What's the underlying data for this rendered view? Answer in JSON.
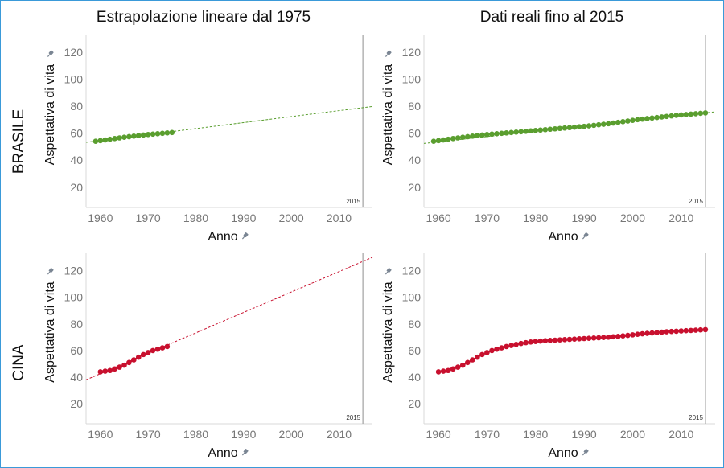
{
  "column_titles": [
    "Estrapolazione lineare dal 1975",
    "Dati reali fino al 2015"
  ],
  "row_labels": [
    "BRASILE",
    "CINA"
  ],
  "xlabel": "Anno",
  "ylabel": "Aspettativa di vita",
  "xticks": [
    1960,
    1970,
    1980,
    1990,
    2000,
    2010
  ],
  "yticks": [
    20,
    40,
    60,
    80,
    100,
    120
  ],
  "reference_label": "2015",
  "colors": {
    "brasile": "#5a9e2f",
    "cina": "#c8102e",
    "axis": "#d8d8d8",
    "refline": "#a8a8a8",
    "tick": "#777777",
    "pin": "#7a8593"
  },
  "chart_data": [
    {
      "type": "line",
      "title": "Estrapolazione lineare dal 1975",
      "row": "BRASILE",
      "xlabel": "Anno",
      "ylabel": "Aspettativa di vita",
      "xlim": [
        1957,
        2017
      ],
      "ylim": [
        5,
        133
      ],
      "reference_line": 2015,
      "series": [
        {
          "x": [
            1959,
            1960,
            1961,
            1962,
            1963,
            1964,
            1965,
            1966,
            1967,
            1968,
            1969,
            1970,
            1971,
            1972,
            1973,
            1974,
            1975
          ],
          "values": [
            54.0,
            54.5,
            55.0,
            55.5,
            56.0,
            56.5,
            57.0,
            57.4,
            57.8,
            58.2,
            58.6,
            59.0,
            59.3,
            59.6,
            59.9,
            60.2,
            60.5
          ]
        }
      ],
      "trend": {
        "x": [
          1957,
          2017
        ],
        "y": [
          53.2,
          79.8
        ]
      }
    },
    {
      "type": "line",
      "title": "Dati reali fino al 2015",
      "row": "BRASILE",
      "xlabel": "Anno",
      "ylabel": "Aspettativa di vita",
      "xlim": [
        1957,
        2017
      ],
      "ylim": [
        5,
        133
      ],
      "reference_line": 2015,
      "series": [
        {
          "x": [
            1959,
            1960,
            1961,
            1962,
            1963,
            1964,
            1965,
            1966,
            1967,
            1968,
            1969,
            1970,
            1971,
            1972,
            1973,
            1974,
            1975,
            1976,
            1977,
            1978,
            1979,
            1980,
            1981,
            1982,
            1983,
            1984,
            1985,
            1986,
            1987,
            1988,
            1989,
            1990,
            1991,
            1992,
            1993,
            1994,
            1995,
            1996,
            1997,
            1998,
            1999,
            2000,
            2001,
            2002,
            2003,
            2004,
            2005,
            2006,
            2007,
            2008,
            2009,
            2010,
            2011,
            2012,
            2013,
            2014,
            2015
          ],
          "values": [
            54.0,
            54.5,
            55.0,
            55.5,
            56.0,
            56.5,
            57.0,
            57.4,
            57.8,
            58.2,
            58.6,
            59.0,
            59.3,
            59.6,
            59.9,
            60.2,
            60.5,
            60.8,
            61.1,
            61.4,
            61.7,
            62.0,
            62.3,
            62.6,
            62.9,
            63.2,
            63.5,
            63.8,
            64.1,
            64.4,
            64.7,
            65.0,
            65.4,
            65.8,
            66.2,
            66.6,
            67.0,
            67.5,
            68.0,
            68.5,
            69.0,
            69.5,
            70.0,
            70.4,
            70.8,
            71.2,
            71.6,
            72.0,
            72.4,
            72.8,
            73.2,
            73.5,
            73.8,
            74.1,
            74.4,
            74.7,
            75.0
          ]
        }
      ],
      "trend": {
        "x": [
          1957,
          2017
        ],
        "y": [
          52.4,
          75.8
        ]
      }
    },
    {
      "type": "line",
      "title": "Estrapolazione lineare dal 1975",
      "row": "CINA",
      "xlabel": "Anno",
      "ylabel": "Aspettativa di vita",
      "xlim": [
        1957,
        2017
      ],
      "ylim": [
        5,
        133
      ],
      "reference_line": 2015,
      "series": [
        {
          "x": [
            1960,
            1961,
            1962,
            1963,
            1964,
            1965,
            1966,
            1967,
            1968,
            1969,
            1970,
            1971,
            1972,
            1973,
            1974
          ],
          "values": [
            44.0,
            44.5,
            45.0,
            46.2,
            47.5,
            49.0,
            51.0,
            53.0,
            55.0,
            57.0,
            58.5,
            60.0,
            61.0,
            62.0,
            63.0
          ]
        }
      ],
      "trend": {
        "x": [
          1957,
          2017
        ],
        "y": [
          38.0,
          130.0
        ]
      }
    },
    {
      "type": "line",
      "title": "Dati reali fino al 2015",
      "row": "CINA",
      "xlabel": "Anno",
      "ylabel": "Aspettativa di vita",
      "xlim": [
        1957,
        2017
      ],
      "ylim": [
        5,
        133
      ],
      "reference_line": 2015,
      "series": [
        {
          "x": [
            1960,
            1961,
            1962,
            1963,
            1964,
            1965,
            1966,
            1967,
            1968,
            1969,
            1970,
            1971,
            1972,
            1973,
            1974,
            1975,
            1976,
            1977,
            1978,
            1979,
            1980,
            1981,
            1982,
            1983,
            1984,
            1985,
            1986,
            1987,
            1988,
            1989,
            1990,
            1991,
            1992,
            1993,
            1994,
            1995,
            1996,
            1997,
            1998,
            1999,
            2000,
            2001,
            2002,
            2003,
            2004,
            2005,
            2006,
            2007,
            2008,
            2009,
            2010,
            2011,
            2012,
            2013,
            2014,
            2015
          ],
          "values": [
            44.0,
            44.5,
            45.0,
            46.2,
            47.5,
            49.0,
            51.0,
            53.0,
            55.0,
            57.0,
            58.5,
            60.0,
            61.0,
            62.0,
            63.0,
            63.8,
            64.6,
            65.3,
            65.9,
            66.4,
            66.8,
            67.1,
            67.4,
            67.6,
            67.8,
            68.0,
            68.2,
            68.4,
            68.6,
            68.8,
            69.0,
            69.2,
            69.4,
            69.6,
            69.8,
            70.0,
            70.3,
            70.6,
            71.0,
            71.4,
            71.8,
            72.2,
            72.6,
            72.9,
            73.2,
            73.5,
            73.8,
            74.1,
            74.3,
            74.5,
            74.7,
            74.9,
            75.1,
            75.3,
            75.5,
            75.7
          ]
        }
      ]
    }
  ]
}
